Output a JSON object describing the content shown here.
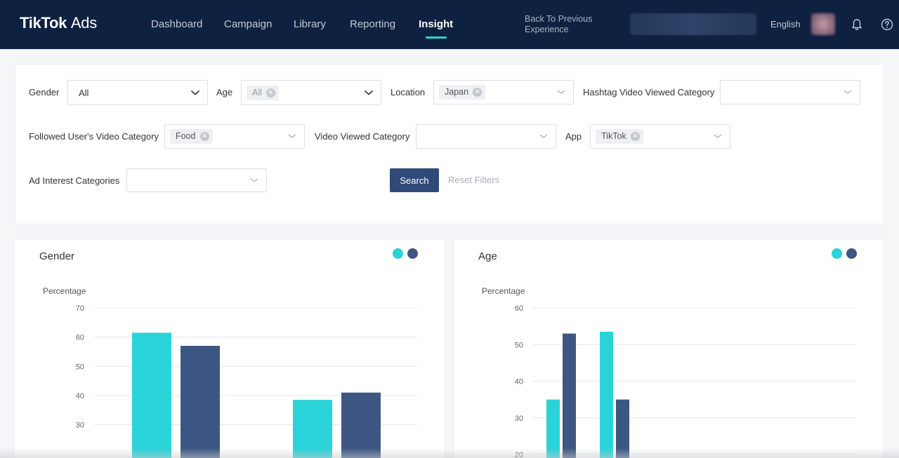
{
  "nav": {
    "logo_brand": "TikTok",
    "logo_product": "Ads",
    "items": [
      {
        "label": "Dashboard",
        "active": false
      },
      {
        "label": "Campaign",
        "active": false
      },
      {
        "label": "Library",
        "active": false
      },
      {
        "label": "Reporting",
        "active": false
      },
      {
        "label": "Insight",
        "active": true
      }
    ],
    "back_link": "Back To Previous Experience",
    "language": "English",
    "icons": [
      "bell-icon",
      "help-circle-icon"
    ],
    "accent_color": "#25d4d8",
    "bar_color": "#0f2140"
  },
  "filters": {
    "gender": {
      "label": "Gender",
      "value": "All"
    },
    "age": {
      "label": "Age",
      "tag": "All"
    },
    "location": {
      "label": "Location",
      "tag": "Japan"
    },
    "hashtag_category": {
      "label": "Hashtag Video Viewed Category",
      "value": ""
    },
    "followed_user_category": {
      "label": "Followed User's Video Category",
      "tag": "Food"
    },
    "video_viewed_category": {
      "label": "Video Viewed Category",
      "value": ""
    },
    "app": {
      "label": "App",
      "tag": "TikTok"
    },
    "ad_interest": {
      "label": "Ad Interest Categories",
      "value": ""
    },
    "search_button": "Search",
    "reset_button": "Reset Filters"
  },
  "chart_data": [
    {
      "type": "bar",
      "title": "Gender",
      "ylabel": "Percentage",
      "xlabel": "",
      "ylim": [
        27,
        70
      ],
      "yticks": [
        30,
        40,
        50,
        60,
        70
      ],
      "grid": true,
      "legend": "top-right",
      "colors": [
        "#29d3d8",
        "#3d5782"
      ],
      "categories": [
        "",
        ""
      ],
      "series": [
        {
          "values": [
            61.5,
            57
          ]
        },
        {
          "values": [
            38.5,
            41
          ]
        }
      ]
    },
    {
      "type": "bar",
      "title": "Age",
      "ylabel": "Percentage",
      "xlabel": "",
      "ylim": [
        20,
        60
      ],
      "yticks": [
        20,
        30,
        40,
        50,
        60
      ],
      "grid": true,
      "legend": "top-right",
      "colors": [
        "#29d3d8",
        "#3d5782"
      ],
      "categories": [
        "",
        ""
      ],
      "series": [
        {
          "values": [
            35,
            53
          ]
        },
        {
          "values": [
            53.5,
            35
          ]
        }
      ]
    }
  ]
}
